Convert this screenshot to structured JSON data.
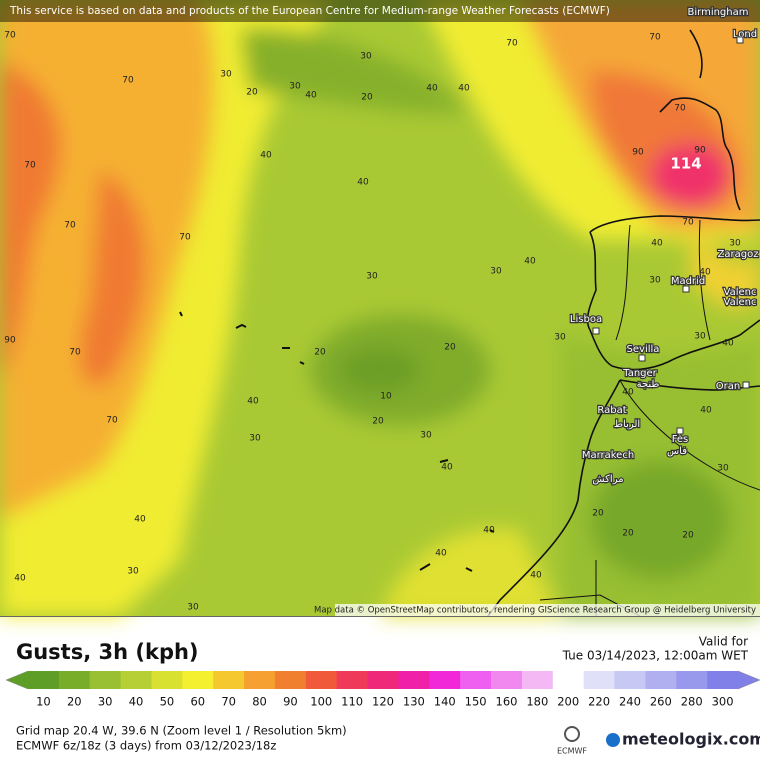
{
  "banner": "This service is based on data and products of the European Centre for Medium-range Weather Forecasts (ECMWF)",
  "attribution": "Map data © OpenStreetMap contributors, rendering GIScience Research Group @ Heidelberg University",
  "peak_label": "114",
  "cities": [
    "Birmingham",
    "Lond",
    "Zaragoz",
    "Madrid",
    "Valenc",
    "Valenc",
    "Lisboa",
    "Sevilla",
    "Tanger",
    "طنجة",
    "Oran",
    "Rabat",
    "الرباط",
    "Fès",
    "فاس",
    "Marrakech",
    "مراكش"
  ],
  "contour_labels": [
    "70",
    "70",
    "70",
    "70",
    "70",
    "70",
    "70",
    "90",
    "30",
    "20",
    "30",
    "40",
    "30",
    "20",
    "40",
    "40",
    "70",
    "70",
    "70",
    "90",
    "90",
    "70",
    "40",
    "40",
    "30",
    "30",
    "40",
    "40",
    "30",
    "30",
    "40",
    "20",
    "20",
    "10",
    "20",
    "30",
    "40",
    "30",
    "30",
    "40",
    "30",
    "40",
    "40",
    "40",
    "30",
    "30",
    "40",
    "40",
    "40",
    "30",
    "20",
    "20",
    "20",
    "40",
    "40"
  ],
  "title": "Gusts, 3h (kph)",
  "valid_label": "Valid for",
  "valid_time": "Tue 03/14/2023, 12:00am WET",
  "scale": [
    {
      "value": 10,
      "color": "#5e9e26"
    },
    {
      "value": 20,
      "color": "#78ad2a"
    },
    {
      "value": 30,
      "color": "#98c032"
    },
    {
      "value": 40,
      "color": "#b5cf35"
    },
    {
      "value": 50,
      "color": "#d8e030"
    },
    {
      "value": 60,
      "color": "#f4f030"
    },
    {
      "value": 70,
      "color": "#f5c830"
    },
    {
      "value": 80,
      "color": "#f5a030"
    },
    {
      "value": 90,
      "color": "#f08030"
    },
    {
      "value": 100,
      "color": "#f05a3a"
    },
    {
      "value": 110,
      "color": "#f03a5a"
    },
    {
      "value": 120,
      "color": "#f0287a"
    },
    {
      "value": 130,
      "color": "#f020a8"
    },
    {
      "value": 140,
      "color": "#f028d8"
    },
    {
      "value": 150,
      "color": "#f060f0"
    },
    {
      "value": 160,
      "color": "#f088f0"
    },
    {
      "value": 180,
      "color": "#f4b8f4"
    },
    {
      "value": 200,
      "color": "#ffffff"
    },
    {
      "value": 220,
      "color": "#e0e0f8"
    },
    {
      "value": 240,
      "color": "#c8c8f4"
    },
    {
      "value": 260,
      "color": "#b0b0f0"
    },
    {
      "value": 280,
      "color": "#9898ec"
    },
    {
      "value": 300,
      "color": "#8080e8"
    }
  ],
  "grid_info": "Grid map 20.4 W, 39.6 N (Zoom level 1 / Resolution 5km)",
  "model_info": "ECMWF 6z/18z (3 days) from 03/12/2023/18z",
  "ecmwf_logo": "ECMWF",
  "brand": "meteologix.com"
}
